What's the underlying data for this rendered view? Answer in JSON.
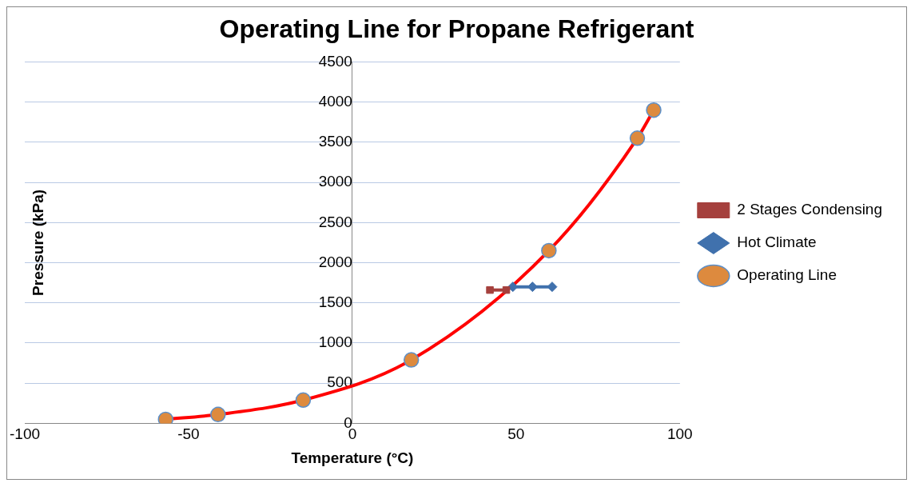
{
  "chart_data": {
    "type": "line",
    "title": "Operating Line for Propane Refrigerant",
    "xlabel": "Temperature (°C)",
    "ylabel": "Pressure (kPa)",
    "xlim": [
      -100,
      100
    ],
    "xticks": [
      -100,
      -50,
      0,
      50,
      100
    ],
    "ylim": [
      0,
      4500
    ],
    "yticks": [
      0,
      500,
      1000,
      1500,
      2000,
      2500,
      3000,
      3500,
      4000,
      4500
    ],
    "grid": "y",
    "legend": "right",
    "series": [
      {
        "name": "Operating Line",
        "color": "#ff0000",
        "colors": [
          "#dd8a3e",
          "#dd8a3e",
          "#dd8a3e",
          "#dd8a3e",
          "#dd8a3e",
          "#dd8a3e",
          "#dd8a3e"
        ],
        "marker": "circle",
        "x": [
          -57,
          -41,
          -15,
          18,
          60,
          87,
          92
        ],
        "values": [
          50,
          110,
          290,
          790,
          2150,
          3550,
          3900
        ]
      },
      {
        "name": "Hot Climate",
        "color": "#4071ad",
        "marker": "diamond",
        "x": [
          49,
          55,
          61
        ],
        "values": [
          1700,
          1700,
          1700
        ]
      },
      {
        "name": "2 Stages Condensing",
        "color": "#a5403d",
        "marker": "square",
        "x": [
          42,
          47
        ],
        "values": [
          1660,
          1660
        ]
      }
    ]
  }
}
